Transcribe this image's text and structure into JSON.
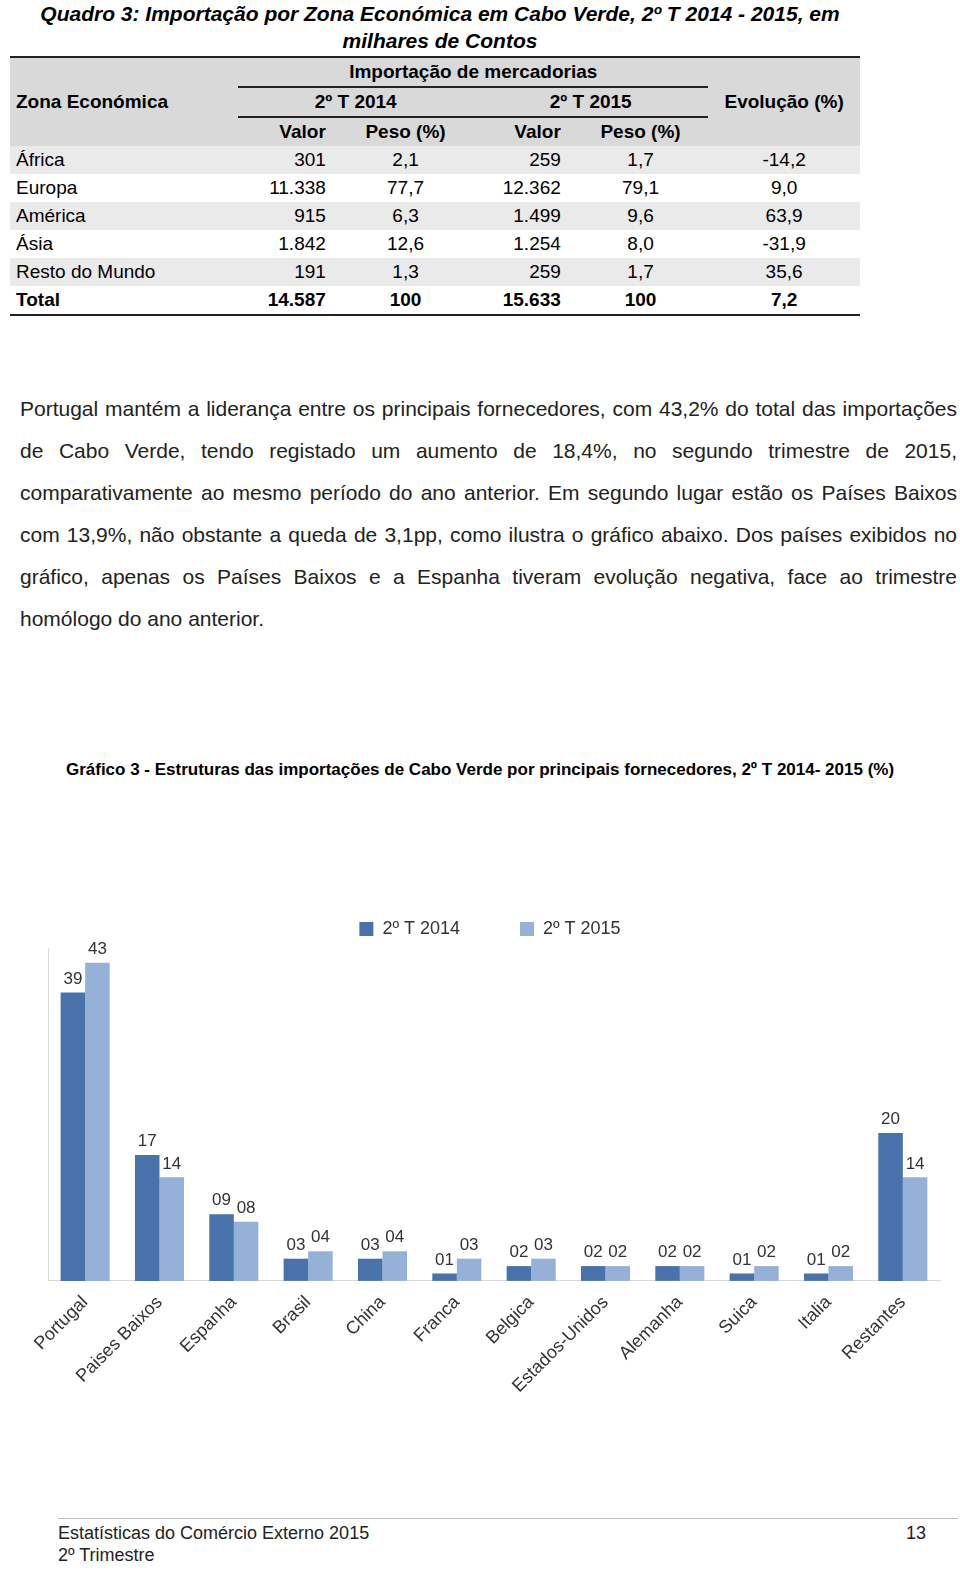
{
  "title": "Quadro 3: Importação por Zona Económica em Cabo Verde, 2º T 2014 - 2015, em milhares de Contos",
  "table": {
    "header": {
      "zone": "Zona Económica",
      "group": "Importação de mercadorias",
      "periods": [
        "2º T 2014",
        "2º T 2015"
      ],
      "subcolumns": [
        "Valor",
        "Peso (%)"
      ],
      "evolution": "Evolução (%)"
    },
    "rows": [
      [
        "África",
        "301",
        "2,1",
        "259",
        "1,7",
        "-14,2"
      ],
      [
        "Europa",
        "11.338",
        "77,7",
        "12.362",
        "79,1",
        "9,0"
      ],
      [
        "América",
        "915",
        "6,3",
        "1.499",
        "9,6",
        "63,9"
      ],
      [
        "Ásia",
        "1.842",
        "12,6",
        "1.254",
        "8,0",
        "-31,9"
      ],
      [
        "Resto do Mundo",
        "191",
        "1,3",
        "259",
        "1,7",
        "35,6"
      ]
    ],
    "total": [
      "Total",
      "14.587",
      "100",
      "15.633",
      "100",
      "7,2"
    ]
  },
  "paragraph": "Portugal mantém a liderança entre os principais fornecedores, com 43,2% do total das importações de Cabo Verde, tendo registado um aumento de 18,4%, no segundo trimestre de 2015, comparativamente ao mesmo período do ano anterior. Em segundo lugar estão os Países Baixos com 13,9%, não obstante a queda de 3,1pp, como ilustra o gráfico abaixo. Dos países exibidos no gráfico, apenas os Países Baixos e a Espanha tiveram evolução negativa, face ao trimestre homólogo do ano anterior.",
  "chart_data": {
    "type": "bar",
    "title": "Gráfico 3 - Estruturas das importações de Cabo Verde por principais fornecedores, 2º T 2014- 2015 (%)",
    "categories": [
      "Portugal",
      "Paises Baixos",
      "Espanha",
      "Brasil",
      "China",
      "Franca",
      "Belgica",
      "Estados-Unidos",
      "Alemanha",
      "Suica",
      "Italia",
      "Restantes"
    ],
    "series": [
      {
        "name": "2º T 2014",
        "color": "#4a72aa",
        "values": [
          39,
          17,
          9,
          3,
          3,
          1,
          2,
          2,
          2,
          1,
          1,
          20
        ],
        "value_labels": [
          "39",
          "17",
          "09",
          "03",
          "03",
          "01",
          "02",
          "02",
          "02",
          "01",
          "01",
          "20"
        ]
      },
      {
        "name": "2º T 2015",
        "color": "#96b1d8",
        "values": [
          43,
          14,
          8,
          4,
          4,
          3,
          3,
          2,
          2,
          2,
          2,
          14
        ],
        "value_labels": [
          "43",
          "14",
          "08",
          "04",
          "04",
          "03",
          "03",
          "02",
          "02",
          "02",
          "02",
          "14"
        ]
      }
    ],
    "ylim": [
      0,
      45
    ],
    "grid": false,
    "legend": "top",
    "data_labels": true,
    "tick_labels": "x"
  },
  "footer": {
    "left": [
      "Estatísticas do Comércio Externo 2015",
      "2º Trimestre"
    ],
    "page": "13"
  }
}
